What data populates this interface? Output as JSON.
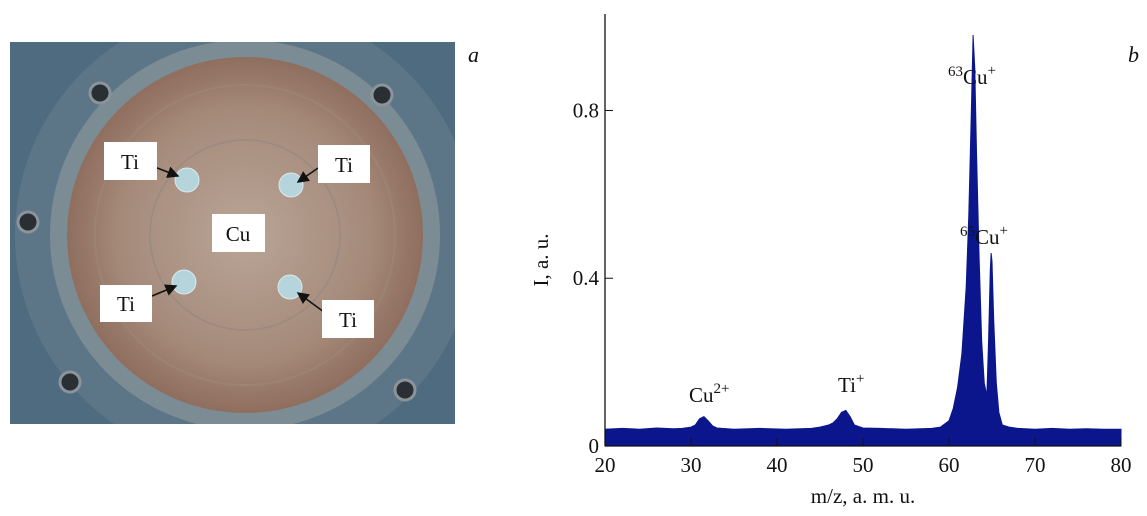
{
  "photo": {
    "panel": "a",
    "labels": [
      "Ti",
      "Ti",
      "Cu",
      "Ti",
      "Ti"
    ]
  },
  "chart_data": {
    "type": "area",
    "panel": "b",
    "xlabel": "m/z, a. m. u.",
    "ylabel": "I, a. u.",
    "color": "#0b168c",
    "x": [
      20,
      22,
      24,
      26,
      28,
      29,
      30,
      30.5,
      31,
      31.5,
      32,
      32.5,
      33,
      35,
      38,
      41,
      44,
      45,
      46,
      46.5,
      47,
      47.5,
      48,
      48.5,
      49,
      50,
      52,
      55,
      58,
      59,
      60,
      60.5,
      61,
      61.5,
      62,
      62.3,
      62.6,
      62.8,
      63,
      63.2,
      63.5,
      63.8,
      64.1,
      64.4,
      64.6,
      64.8,
      64.9,
      65,
      65.2,
      65.5,
      65.8,
      66.2,
      67,
      68,
      70,
      72,
      74,
      76,
      78,
      80
    ],
    "values": [
      0.04,
      0.042,
      0.04,
      0.043,
      0.041,
      0.042,
      0.045,
      0.05,
      0.065,
      0.07,
      0.06,
      0.048,
      0.043,
      0.04,
      0.042,
      0.04,
      0.042,
      0.045,
      0.05,
      0.055,
      0.065,
      0.08,
      0.085,
      0.07,
      0.05,
      0.043,
      0.042,
      0.04,
      0.042,
      0.045,
      0.06,
      0.09,
      0.14,
      0.22,
      0.38,
      0.55,
      0.8,
      0.98,
      0.9,
      0.7,
      0.45,
      0.25,
      0.15,
      0.12,
      0.25,
      0.42,
      0.46,
      0.44,
      0.3,
      0.15,
      0.08,
      0.05,
      0.045,
      0.042,
      0.04,
      0.042,
      0.04,
      0.041,
      0.04,
      0.04
    ],
    "xlim": [
      20,
      80
    ],
    "ylim": [
      0,
      1.03
    ],
    "xticks": [
      20,
      30,
      40,
      50,
      60,
      70,
      80
    ],
    "yticks": [
      0,
      0.4,
      0.8
    ],
    "annotations": [
      {
        "base": "Cu",
        "sup": "2+"
      },
      {
        "base": "Ti",
        "sup": "+"
      },
      {
        "pre": "63",
        "base": "Cu",
        "sup": "+"
      },
      {
        "pre": "65",
        "base": "Cu",
        "sup": "+"
      }
    ]
  }
}
